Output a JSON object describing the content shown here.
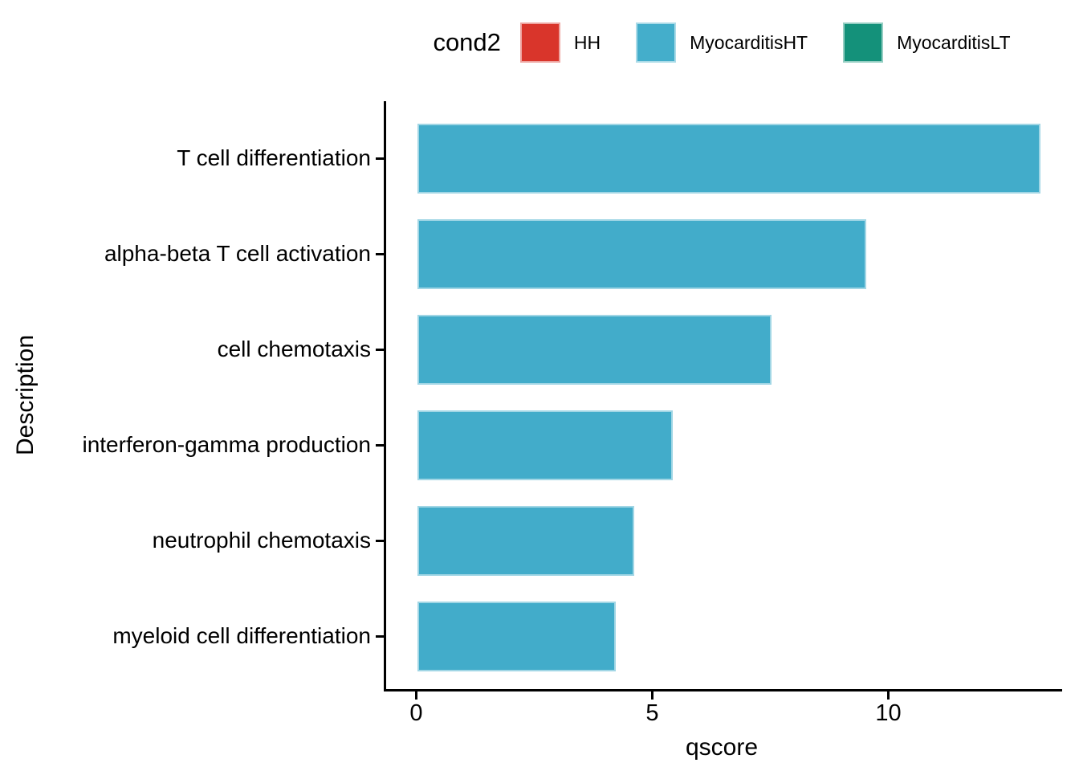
{
  "chart_data": {
    "type": "bar",
    "orientation": "horizontal",
    "title": "",
    "xlabel": "qscore",
    "ylabel": "Description",
    "categories": [
      "T cell differentiation",
      "alpha-beta T cell activation",
      "cell chemotaxis",
      "interferon-gamma production",
      "neutrophil chemotaxis",
      "myeloid cell differentiation"
    ],
    "series": [
      {
        "name": "MyocarditisHT",
        "values": [
          13.2,
          9.5,
          7.5,
          5.4,
          4.6,
          4.2
        ]
      }
    ],
    "bar_color": "#42ACCA",
    "xlim": [
      0,
      13.65
    ],
    "xticks": [
      0,
      5,
      10
    ],
    "grid": false,
    "legend": {
      "title": "cond2",
      "position": "top",
      "entries": [
        {
          "label": "HH",
          "color": "#D9352B"
        },
        {
          "label": "MyocarditisHT",
          "color": "#44AECB"
        },
        {
          "label": "MyocarditisLT",
          "color": "#14917A"
        }
      ]
    }
  }
}
